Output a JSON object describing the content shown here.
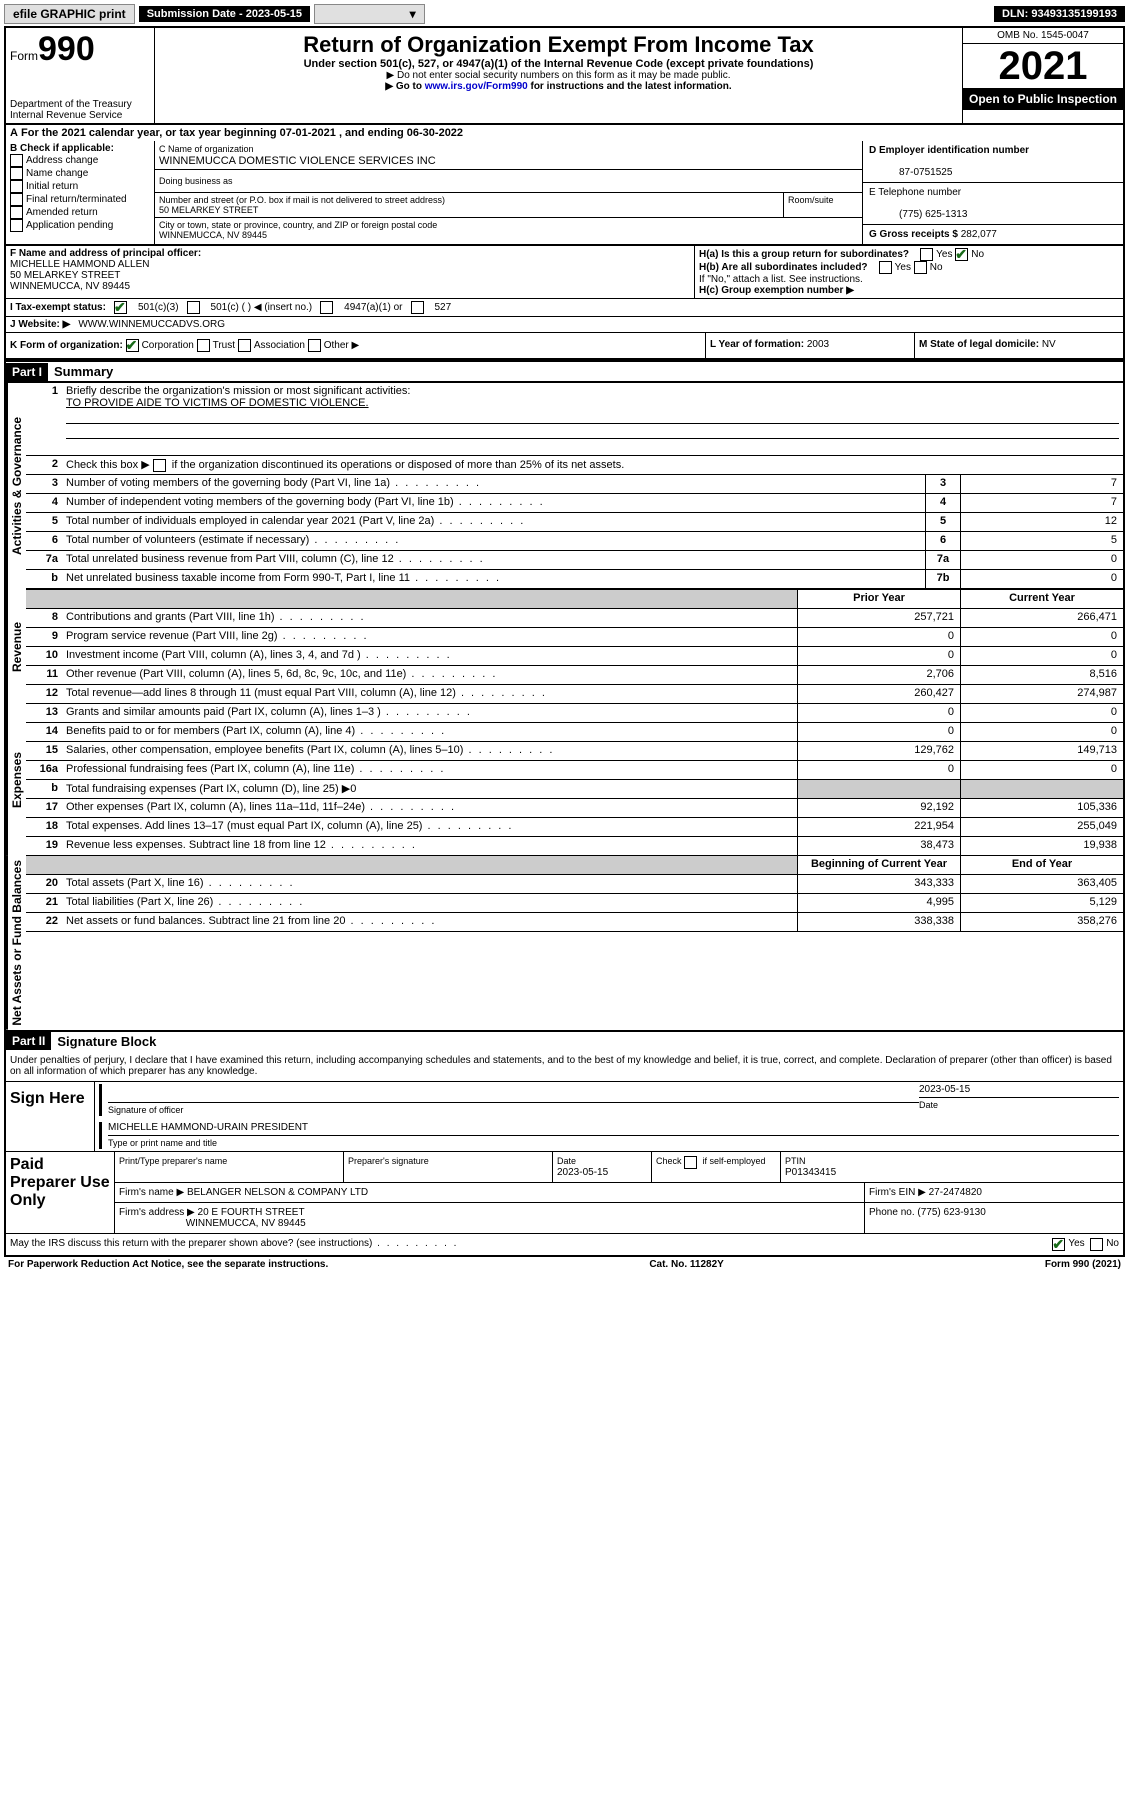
{
  "topbar": {
    "efile": "efile GRAPHIC print",
    "sub_label": "Submission Date - 2023-05-15",
    "dln": "DLN: 93493135199193"
  },
  "header": {
    "form_prefix": "Form",
    "form_number": "990",
    "dept": "Department of the Treasury",
    "irs": "Internal Revenue Service",
    "title": "Return of Organization Exempt From Income Tax",
    "subtitle": "Under section 501(c), 527, or 4947(a)(1) of the Internal Revenue Code (except private foundations)",
    "note1": "▶ Do not enter social security numbers on this form as it may be made public.",
    "note2_pre": "▶ Go to ",
    "note2_link": "www.irs.gov/Form990",
    "note2_post": " for instructions and the latest information.",
    "omb": "OMB No. 1545-0047",
    "year": "2021",
    "open": "Open to Public Inspection"
  },
  "row_a": {
    "label_a": "A",
    "text": "For the 2021 calendar year, or tax year beginning 07-01-2021   , and ending 06-30-2022"
  },
  "b": {
    "label": "B Check if applicable:",
    "opts": [
      "Address change",
      "Name change",
      "Initial return",
      "Final return/terminated",
      "Amended return",
      "Application pending"
    ]
  },
  "c": {
    "name_label": "C Name of organization",
    "name": "WINNEMUCCA DOMESTIC VIOLENCE SERVICES INC",
    "dba_label": "Doing business as",
    "addr_label": "Number and street (or P.O. box if mail is not delivered to street address)",
    "addr": "50 MELARKEY STREET",
    "room_label": "Room/suite",
    "city_label": "City or town, state or province, country, and ZIP or foreign postal code",
    "city": "WINNEMUCCA, NV  89445"
  },
  "d": {
    "ein_label": "D Employer identification number",
    "ein": "87-0751525",
    "tel_label": "E Telephone number",
    "tel": "(775) 625-1313",
    "gross_label": "G Gross receipts $",
    "gross": "282,077"
  },
  "f": {
    "label": "F Name and address of principal officer:",
    "name": "MICHELLE HAMMOND ALLEN",
    "addr1": "50 MELARKEY STREET",
    "addr2": "WINNEMUCCA, NV  89445"
  },
  "h": {
    "ha": "H(a)  Is this a group return for subordinates?",
    "hb": "H(b)  Are all subordinates included?",
    "hb_note": "If \"No,\" attach a list. See instructions.",
    "hc": "H(c)  Group exemption number ▶",
    "yes": "Yes",
    "no": "No"
  },
  "i": {
    "label": "I   Tax-exempt status:",
    "o1": "501(c)(3)",
    "o2": "501(c) (  ) ◀ (insert no.)",
    "o3": "4947(a)(1) or",
    "o4": "527"
  },
  "j": {
    "label": "J   Website: ▶",
    "val": "WWW.WINNEMUCCADVS.ORG"
  },
  "k": {
    "label": "K Form of organization:",
    "o1": "Corporation",
    "o2": "Trust",
    "o3": "Association",
    "o4": "Other ▶"
  },
  "l": {
    "label": "L Year of formation:",
    "val": "2003"
  },
  "m": {
    "label": "M State of legal domicile:",
    "val": "NV"
  },
  "part1": {
    "header": "Part I",
    "title": "Summary",
    "q1": "Briefly describe the organization's mission or most significant activities:",
    "mission": "TO PROVIDE AIDE TO VICTIMS OF DOMESTIC VIOLENCE.",
    "q2": "Check this box ▶        if the organization discontinued its operations or disposed of more than 25% of its net assets.",
    "side_act": "Activities & Governance",
    "side_rev": "Revenue",
    "side_exp": "Expenses",
    "side_net": "Net Assets or Fund Balances",
    "prior": "Prior Year",
    "current": "Current Year",
    "begin": "Beginning of Current Year",
    "end": "End of Year",
    "lines_gov": [
      {
        "n": "3",
        "d": "Number of voting members of the governing body (Part VI, line 1a)",
        "b": "3",
        "v": "7"
      },
      {
        "n": "4",
        "d": "Number of independent voting members of the governing body (Part VI, line 1b)",
        "b": "4",
        "v": "7"
      },
      {
        "n": "5",
        "d": "Total number of individuals employed in calendar year 2021 (Part V, line 2a)",
        "b": "5",
        "v": "12"
      },
      {
        "n": "6",
        "d": "Total number of volunteers (estimate if necessary)",
        "b": "6",
        "v": "5"
      },
      {
        "n": "7a",
        "d": "Total unrelated business revenue from Part VIII, column (C), line 12",
        "b": "7a",
        "v": "0"
      },
      {
        "n": "b",
        "d": "Net unrelated business taxable income from Form 990-T, Part I, line 11",
        "b": "7b",
        "v": "0"
      }
    ],
    "lines_rev": [
      {
        "n": "8",
        "d": "Contributions and grants (Part VIII, line 1h)",
        "p": "257,721",
        "c": "266,471"
      },
      {
        "n": "9",
        "d": "Program service revenue (Part VIII, line 2g)",
        "p": "0",
        "c": "0"
      },
      {
        "n": "10",
        "d": "Investment income (Part VIII, column (A), lines 3, 4, and 7d )",
        "p": "0",
        "c": "0"
      },
      {
        "n": "11",
        "d": "Other revenue (Part VIII, column (A), lines 5, 6d, 8c, 9c, 10c, and 11e)",
        "p": "2,706",
        "c": "8,516"
      },
      {
        "n": "12",
        "d": "Total revenue—add lines 8 through 11 (must equal Part VIII, column (A), line 12)",
        "p": "260,427",
        "c": "274,987"
      }
    ],
    "lines_exp": [
      {
        "n": "13",
        "d": "Grants and similar amounts paid (Part IX, column (A), lines 1–3 )",
        "p": "0",
        "c": "0"
      },
      {
        "n": "14",
        "d": "Benefits paid to or for members (Part IX, column (A), line 4)",
        "p": "0",
        "c": "0"
      },
      {
        "n": "15",
        "d": "Salaries, other compensation, employee benefits (Part IX, column (A), lines 5–10)",
        "p": "129,762",
        "c": "149,713"
      },
      {
        "n": "16a",
        "d": "Professional fundraising fees (Part IX, column (A), line 11e)",
        "p": "0",
        "c": "0"
      },
      {
        "n": "b",
        "d": "Total fundraising expenses (Part IX, column (D), line 25) ▶0",
        "p": "",
        "c": "",
        "grey": true
      },
      {
        "n": "17",
        "d": "Other expenses (Part IX, column (A), lines 11a–11d, 11f–24e)",
        "p": "92,192",
        "c": "105,336"
      },
      {
        "n": "18",
        "d": "Total expenses. Add lines 13–17 (must equal Part IX, column (A), line 25)",
        "p": "221,954",
        "c": "255,049"
      },
      {
        "n": "19",
        "d": "Revenue less expenses. Subtract line 18 from line 12",
        "p": "38,473",
        "c": "19,938"
      }
    ],
    "lines_net": [
      {
        "n": "20",
        "d": "Total assets (Part X, line 16)",
        "p": "343,333",
        "c": "363,405"
      },
      {
        "n": "21",
        "d": "Total liabilities (Part X, line 26)",
        "p": "4,995",
        "c": "5,129"
      },
      {
        "n": "22",
        "d": "Net assets or fund balances. Subtract line 21 from line 20",
        "p": "338,338",
        "c": "358,276"
      }
    ]
  },
  "part2": {
    "header": "Part II",
    "title": "Signature Block",
    "perjury": "Under penalties of perjury, I declare that I have examined this return, including accompanying schedules and statements, and to the best of my knowledge and belief, it is true, correct, and complete. Declaration of preparer (other than officer) is based on all information of which preparer has any knowledge.",
    "sign_here": "Sign Here",
    "sig_officer": "Signature of officer",
    "date_label": "Date",
    "sig_date": "2023-05-15",
    "officer_name": "MICHELLE HAMMOND-URAIN  PRESIDENT",
    "type_name": "Type or print name and title",
    "paid": "Paid Preparer Use Only",
    "prep_name_label": "Print/Type preparer's name",
    "prep_sig_label": "Preparer's signature",
    "prep_date_label": "Date",
    "prep_date": "2023-05-15",
    "check_label": "Check        if self-employed",
    "ptin_label": "PTIN",
    "ptin": "P01343415",
    "firm_name_label": "Firm's name    ▶",
    "firm_name": "BELANGER NELSON & COMPANY LTD",
    "firm_ein_label": "Firm's EIN ▶",
    "firm_ein": "27-2474820",
    "firm_addr_label": "Firm's address ▶",
    "firm_addr1": "20 E FOURTH STREET",
    "firm_addr2": "WINNEMUCCA, NV  89445",
    "phone_label": "Phone no.",
    "phone": "(775) 623-9130",
    "discuss": "May the IRS discuss this return with the preparer shown above? (see instructions)"
  },
  "footer": {
    "left": "For Paperwork Reduction Act Notice, see the separate instructions.",
    "mid": "Cat. No. 11282Y",
    "right": "Form 990 (2021)"
  }
}
